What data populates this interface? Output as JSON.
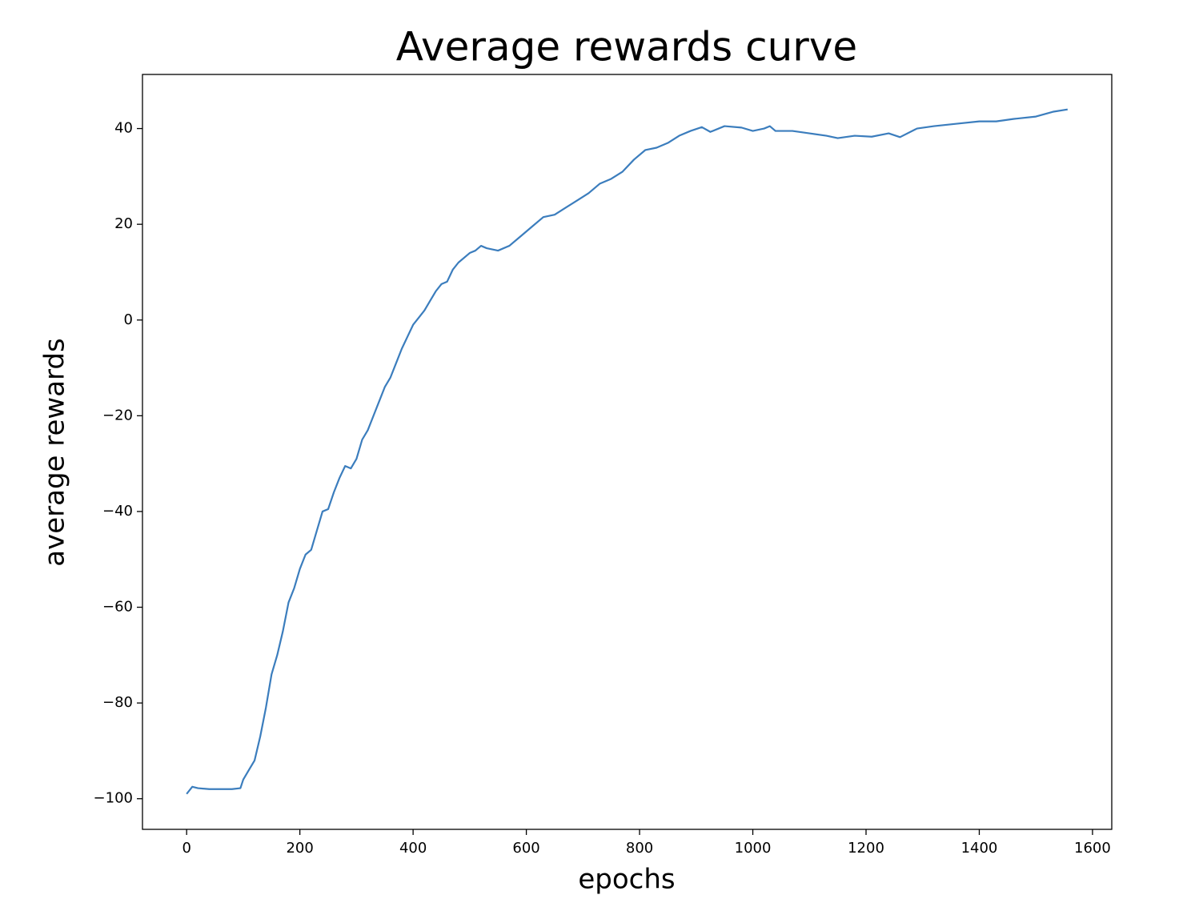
{
  "chart_data": {
    "type": "line",
    "title": "Average rewards curve",
    "x_label": "epochs",
    "y_label": "average rewards",
    "x": [
      0,
      10,
      20,
      40,
      60,
      80,
      95,
      100,
      110,
      120,
      130,
      140,
      150,
      160,
      170,
      180,
      190,
      200,
      210,
      220,
      230,
      240,
      250,
      260,
      270,
      280,
      290,
      300,
      310,
      320,
      330,
      340,
      350,
      360,
      370,
      380,
      390,
      400,
      410,
      420,
      430,
      440,
      450,
      460,
      470,
      480,
      500,
      510,
      520,
      530,
      550,
      570,
      590,
      610,
      630,
      650,
      670,
      690,
      710,
      730,
      750,
      770,
      790,
      810,
      830,
      850,
      870,
      890,
      910,
      925,
      950,
      980,
      1000,
      1020,
      1030,
      1040,
      1070,
      1100,
      1130,
      1150,
      1180,
      1210,
      1240,
      1260,
      1290,
      1320,
      1360,
      1400,
      1430,
      1460,
      1500,
      1530,
      1556
    ],
    "series": [
      {
        "color": "#3b7dbd",
        "values": [
          -99,
          -97.5,
          -97.8,
          -98,
          -98,
          -98,
          -97.8,
          -96,
          -94,
          -92,
          -87,
          -81,
          -74,
          -70,
          -65,
          -59,
          -56,
          -52,
          -49,
          -48,
          -44,
          -40,
          -39.5,
          -36,
          -33,
          -30.5,
          -31,
          -29,
          -25,
          -23,
          -20,
          -17,
          -14,
          -12,
          -9,
          -6,
          -3.5,
          -1,
          0.5,
          2,
          4,
          6,
          7.5,
          8,
          10.5,
          12,
          14,
          14.5,
          15.5,
          15,
          14.5,
          15.5,
          17.5,
          19.5,
          21.5,
          22,
          23.5,
          25,
          26.5,
          28.5,
          29.5,
          31,
          33.5,
          35.5,
          36,
          37,
          38.5,
          39.5,
          40.3,
          39.3,
          40.5,
          40.2,
          39.5,
          40,
          40.5,
          39.5,
          39.5,
          39,
          38.5,
          38,
          38.5,
          38.3,
          39,
          38.2,
          40,
          40.5,
          41,
          41.5,
          41.5,
          42,
          42.5,
          43.5,
          44
        ]
      }
    ],
    "xlim": [
      -78,
      1634
    ],
    "ylim": [
      -106.4,
      51.3
    ],
    "xticks": [
      0,
      200,
      400,
      600,
      800,
      1000,
      1200,
      1400,
      1600
    ],
    "yticks": [
      {
        "value": -100,
        "label": "−100"
      },
      {
        "value": -80,
        "label": "−80"
      },
      {
        "value": -60,
        "label": "−60"
      },
      {
        "value": -40,
        "label": "−40"
      },
      {
        "value": -20,
        "label": "−20"
      },
      0,
      20,
      40
    ]
  }
}
